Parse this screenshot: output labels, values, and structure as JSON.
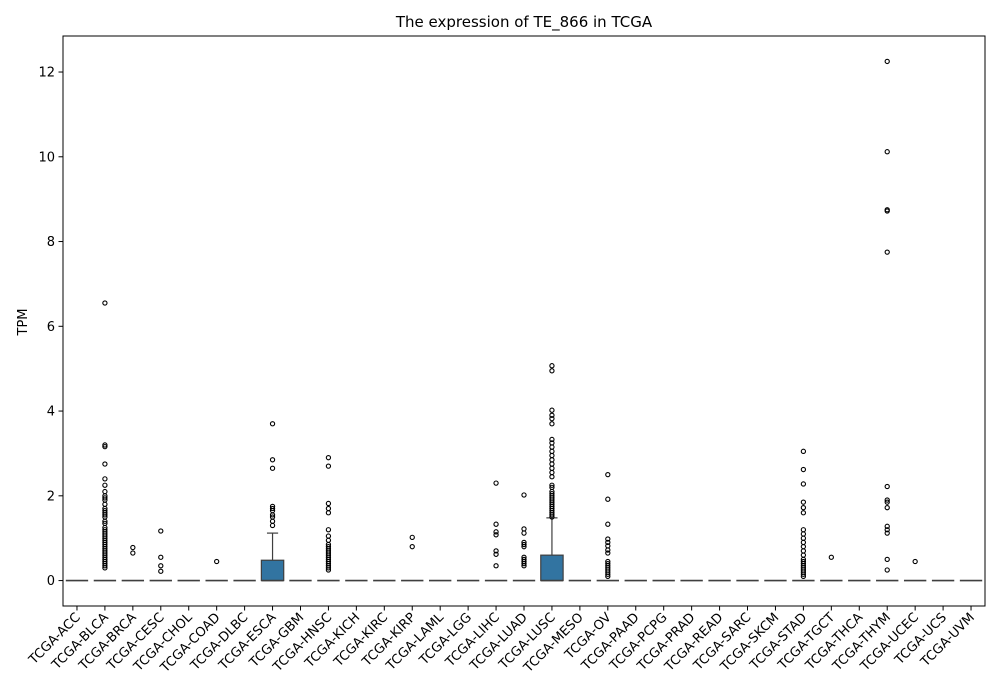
{
  "chart_data": {
    "type": "box",
    "title": "The expression of TE_866 in TCGA",
    "xlabel": "",
    "ylabel": "TPM",
    "ylim": [
      -0.6,
      12.85
    ],
    "yticks": [
      0,
      2,
      4,
      6,
      8,
      10,
      12
    ],
    "ytick_labels": [
      "0",
      "2",
      "4",
      "6",
      "8",
      "10",
      "12"
    ],
    "grid": false,
    "legend": "none",
    "box_color": "#3274a1",
    "outlier_style": "open-circle",
    "categories": [
      "TCGA-ACC",
      "TCGA-BLCA",
      "TCGA-BRCA",
      "TCGA-CESC",
      "TCGA-CHOL",
      "TCGA-COAD",
      "TCGA-DLBC",
      "TCGA-ESCA",
      "TCGA-GBM",
      "TCGA-HNSC",
      "TCGA-KICH",
      "TCGA-KIRC",
      "TCGA-KIRP",
      "TCGA-LAML",
      "TCGA-LGG",
      "TCGA-LIHC",
      "TCGA-LUAD",
      "TCGA-LUSC",
      "TCGA-MESO",
      "TCGA-OV",
      "TCGA-PAAD",
      "TCGA-PCPG",
      "TCGA-PRAD",
      "TCGA-READ",
      "TCGA-SARC",
      "TCGA-SKCM",
      "TCGA-STAD",
      "TCGA-TGCT",
      "TCGA-THCA",
      "TCGA-THYM",
      "TCGA-UCEC",
      "TCGA-UCS",
      "TCGA-UVM"
    ],
    "boxes": [
      {
        "q1": 0,
        "median": 0,
        "q3": 0,
        "whislo": 0,
        "whishi": 0,
        "fliers": []
      },
      {
        "q1": 0,
        "median": 0,
        "q3": 0,
        "whislo": 0,
        "whishi": 0,
        "fliers": [
          6.55,
          3.2,
          3.16,
          2.75,
          2.4,
          2.25,
          2.1,
          2.0,
          1.95,
          1.9,
          1.8,
          1.7,
          1.65,
          1.6,
          1.55,
          1.5,
          1.4,
          1.35,
          1.25,
          1.2,
          1.15,
          1.1,
          1.05,
          1.0,
          0.95,
          0.9,
          0.85,
          0.8,
          0.75,
          0.7,
          0.65,
          0.6,
          0.55,
          0.5,
          0.45,
          0.4,
          0.35,
          0.3
        ]
      },
      {
        "q1": 0,
        "median": 0,
        "q3": 0,
        "whislo": 0,
        "whishi": 0,
        "fliers": [
          0.78,
          0.65
        ]
      },
      {
        "q1": 0,
        "median": 0,
        "q3": 0,
        "whislo": 0,
        "whishi": 0,
        "fliers": [
          1.17,
          0.55,
          0.35,
          0.22
        ]
      },
      {
        "q1": 0,
        "median": 0,
        "q3": 0,
        "whislo": 0,
        "whishi": 0,
        "fliers": []
      },
      {
        "q1": 0,
        "median": 0,
        "q3": 0,
        "whislo": 0,
        "whishi": 0,
        "fliers": [
          0.45
        ]
      },
      {
        "q1": 0,
        "median": 0,
        "q3": 0,
        "whislo": 0,
        "whishi": 0,
        "fliers": []
      },
      {
        "q1": 0,
        "median": 0,
        "q3": 0.48,
        "whislo": 0,
        "whishi": 1.12,
        "fliers": [
          3.7,
          2.85,
          2.65,
          1.75,
          1.7,
          1.65,
          1.55,
          1.5,
          1.4,
          1.3
        ]
      },
      {
        "q1": 0,
        "median": 0,
        "q3": 0,
        "whislo": 0,
        "whishi": 0,
        "fliers": []
      },
      {
        "q1": 0,
        "median": 0,
        "q3": 0,
        "whislo": 0,
        "whishi": 0,
        "fliers": [
          2.9,
          2.7,
          1.82,
          1.7,
          1.6,
          1.2,
          1.05,
          0.95,
          0.85,
          0.8,
          0.75,
          0.7,
          0.65,
          0.6,
          0.55,
          0.5,
          0.45,
          0.4,
          0.35,
          0.3,
          0.25
        ]
      },
      {
        "q1": 0,
        "median": 0,
        "q3": 0,
        "whislo": 0,
        "whishi": 0,
        "fliers": []
      },
      {
        "q1": 0,
        "median": 0,
        "q3": 0,
        "whislo": 0,
        "whishi": 0,
        "fliers": []
      },
      {
        "q1": 0,
        "median": 0,
        "q3": 0,
        "whislo": 0,
        "whishi": 0,
        "fliers": [
          1.02,
          0.8
        ]
      },
      {
        "q1": 0,
        "median": 0,
        "q3": 0,
        "whislo": 0,
        "whishi": 0,
        "fliers": []
      },
      {
        "q1": 0,
        "median": 0,
        "q3": 0,
        "whislo": 0,
        "whishi": 0,
        "fliers": []
      },
      {
        "q1": 0,
        "median": 0,
        "q3": 0,
        "whislo": 0,
        "whishi": 0,
        "fliers": [
          2.3,
          1.33,
          1.15,
          1.08,
          0.7,
          0.62,
          0.35
        ]
      },
      {
        "q1": 0,
        "median": 0,
        "q3": 0,
        "whislo": 0,
        "whishi": 0,
        "fliers": [
          2.02,
          1.22,
          1.12,
          0.9,
          0.85,
          0.8,
          0.55,
          0.5,
          0.45,
          0.4,
          0.35
        ]
      },
      {
        "q1": 0,
        "median": 0,
        "q3": 0.6,
        "whislo": 0,
        "whishi": 1.48,
        "fliers": [
          5.07,
          4.95,
          4.02,
          3.9,
          3.82,
          3.7,
          3.33,
          3.25,
          3.15,
          3.05,
          2.95,
          2.85,
          2.75,
          2.65,
          2.55,
          2.45,
          2.25,
          2.2,
          2.1,
          2.05,
          2.0,
          1.95,
          1.9,
          1.85,
          1.8,
          1.75,
          1.7,
          1.65,
          1.6,
          1.55,
          1.5
        ]
      },
      {
        "q1": 0,
        "median": 0,
        "q3": 0,
        "whislo": 0,
        "whishi": 0,
        "fliers": []
      },
      {
        "q1": 0,
        "median": 0,
        "q3": 0,
        "whislo": 0,
        "whishi": 0,
        "fliers": [
          2.5,
          1.92,
          1.33,
          0.98,
          0.9,
          0.82,
          0.72,
          0.65,
          0.45,
          0.4,
          0.35,
          0.3,
          0.25,
          0.2,
          0.15,
          0.1
        ]
      },
      {
        "q1": 0,
        "median": 0,
        "q3": 0,
        "whislo": 0,
        "whishi": 0,
        "fliers": []
      },
      {
        "q1": 0,
        "median": 0,
        "q3": 0,
        "whislo": 0,
        "whishi": 0,
        "fliers": []
      },
      {
        "q1": 0,
        "median": 0,
        "q3": 0,
        "whislo": 0,
        "whishi": 0,
        "fliers": []
      },
      {
        "q1": 0,
        "median": 0,
        "q3": 0,
        "whislo": 0,
        "whishi": 0,
        "fliers": []
      },
      {
        "q1": 0,
        "median": 0,
        "q3": 0,
        "whislo": 0,
        "whishi": 0,
        "fliers": []
      },
      {
        "q1": 0,
        "median": 0,
        "q3": 0,
        "whislo": 0,
        "whishi": 0,
        "fliers": []
      },
      {
        "q1": 0,
        "median": 0,
        "q3": 0,
        "whislo": 0,
        "whishi": 0,
        "fliers": [
          3.05,
          2.62,
          2.28,
          1.85,
          1.72,
          1.6,
          1.2,
          1.1,
          1.0,
          0.9,
          0.8,
          0.7,
          0.6,
          0.5,
          0.45,
          0.4,
          0.35,
          0.3,
          0.25,
          0.2,
          0.15,
          0.1
        ]
      },
      {
        "q1": 0,
        "median": 0,
        "q3": 0,
        "whislo": 0,
        "whishi": 0,
        "fliers": [
          0.55
        ]
      },
      {
        "q1": 0,
        "median": 0,
        "q3": 0,
        "whislo": 0,
        "whishi": 0,
        "fliers": []
      },
      {
        "q1": 0,
        "median": 0,
        "q3": 0,
        "whislo": 0,
        "whishi": 0,
        "fliers": [
          12.25,
          10.12,
          8.75,
          8.72,
          7.75,
          2.22,
          1.9,
          1.85,
          1.72,
          1.28,
          1.2,
          1.12,
          0.5,
          0.25
        ]
      },
      {
        "q1": 0,
        "median": 0,
        "q3": 0,
        "whislo": 0,
        "whishi": 0,
        "fliers": [
          0.45
        ]
      },
      {
        "q1": 0,
        "median": 0,
        "q3": 0,
        "whislo": 0,
        "whishi": 0,
        "fliers": []
      },
      {
        "q1": 0,
        "median": 0,
        "q3": 0,
        "whislo": 0,
        "whishi": 0,
        "fliers": []
      }
    ]
  }
}
